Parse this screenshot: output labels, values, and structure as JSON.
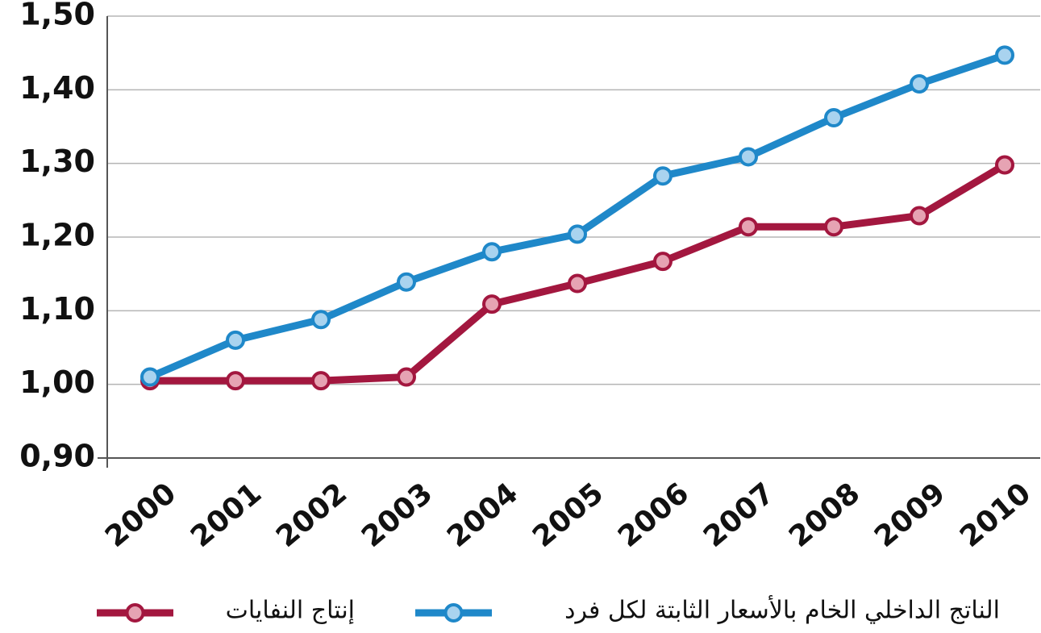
{
  "chart_data": {
    "type": "line",
    "categories": [
      "2000",
      "2001",
      "2002",
      "2003",
      "2004",
      "2005",
      "2006",
      "2007",
      "2008",
      "2009",
      "2010"
    ],
    "series": [
      {
        "name": "الناتج الداخلي الخام بالأسعار الثابتة لكل فرد",
        "color": "#1f88c9",
        "marker_fill": "#a9d3ef",
        "values": [
          1.01,
          1.06,
          1.088,
          1.139,
          1.18,
          1.204,
          1.283,
          1.309,
          1.362,
          1.408,
          1.447
        ]
      },
      {
        "name": "إنتاج النفايات",
        "color": "#a3173f",
        "marker_fill": "#e6a3b3",
        "values": [
          1.005,
          1.005,
          1.005,
          1.01,
          1.109,
          1.137,
          1.167,
          1.214,
          1.214,
          1.229,
          1.298
        ]
      }
    ],
    "ylim": [
      0.9,
      1.5
    ],
    "yticks": [
      {
        "value": 0.9,
        "label": "0,90"
      },
      {
        "value": 1.0,
        "label": "1,00"
      },
      {
        "value": 1.1,
        "label": "1,10"
      },
      {
        "value": 1.2,
        "label": "1,20"
      },
      {
        "value": 1.3,
        "label": "1,30"
      },
      {
        "value": 1.4,
        "label": "1,40"
      },
      {
        "value": 1.5,
        "label": "1,50"
      }
    ],
    "grid": true
  }
}
